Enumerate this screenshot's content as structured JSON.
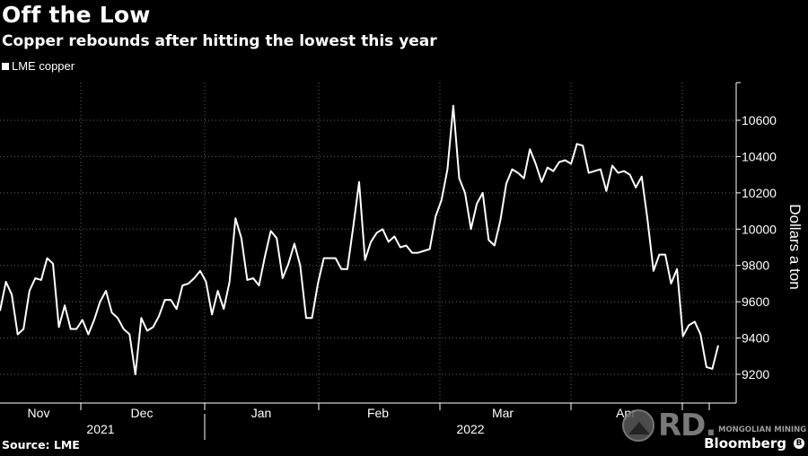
{
  "header": {
    "title": "Off the Low",
    "subtitle": "Copper rebounds after hitting the lowest this year"
  },
  "footer": {
    "source": "Source: LME",
    "brand": "Bloomberg",
    "watermark_letters": "RD.",
    "watermark_text": "MONGOLIAN MINING"
  },
  "colors": {
    "background": "#000000",
    "line": "#ffffff",
    "grid": "#666666"
  },
  "chart_data": {
    "type": "line",
    "title": "Off the Low",
    "subtitle": "Copper rebounds after hitting the lowest this year",
    "ylabel": "Dollars a ton",
    "xlabel": "",
    "ylim": [
      9100,
      10800
    ],
    "yticks": [
      9200,
      9400,
      9600,
      9800,
      10000,
      10200,
      10400,
      10600
    ],
    "y_axis_side": "right",
    "grid": true,
    "legend": {
      "placement": "top-left",
      "entries": [
        "LME copper"
      ]
    },
    "x_month_labels": [
      "Nov",
      "Dec",
      "Jan",
      "Feb",
      "Mar",
      "Apr"
    ],
    "x_year_labels": [
      "2021",
      "2022"
    ],
    "series": [
      {
        "name": "LME copper",
        "values": [
          9550,
          9710,
          9640,
          9420,
          9450,
          9660,
          9730,
          9720,
          9840,
          9810,
          9460,
          9580,
          9450,
          9450,
          9500,
          9420,
          9500,
          9600,
          9660,
          9540,
          9510,
          9450,
          9420,
          9200,
          9510,
          9440,
          9460,
          9520,
          9610,
          9610,
          9560,
          9690,
          9700,
          9730,
          9770,
          9710,
          9530,
          9660,
          9560,
          9710,
          10060,
          9950,
          9720,
          9730,
          9690,
          9850,
          9990,
          9950,
          9730,
          9810,
          9920,
          9800,
          9510,
          9510,
          9700,
          9840,
          9840,
          9840,
          9780,
          9780,
          10010,
          10260,
          9830,
          9930,
          9980,
          10000,
          9930,
          9960,
          9900,
          9910,
          9870,
          9870,
          9880,
          9890,
          10070,
          10160,
          10330,
          10680,
          10280,
          10200,
          10000,
          10140,
          10200,
          9940,
          9910,
          10050,
          10250,
          10330,
          10310,
          10280,
          10440,
          10360,
          10260,
          10340,
          10320,
          10370,
          10380,
          10360,
          10470,
          10460,
          10310,
          10320,
          10330,
          10210,
          10350,
          10310,
          10320,
          10300,
          10230,
          10290,
          10050,
          9770,
          9860,
          9860,
          9700,
          9780,
          9410,
          9470,
          9490,
          9420,
          9240,
          9230,
          9360
        ]
      }
    ]
  }
}
